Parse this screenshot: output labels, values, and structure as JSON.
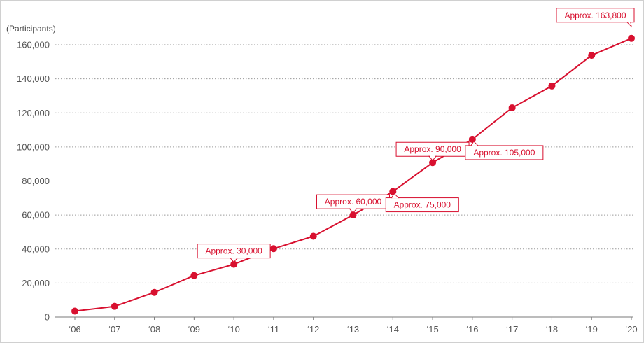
{
  "chart_data": {
    "type": "line",
    "title": "",
    "unit_label": "(Participants)",
    "xlabel": "",
    "ylabel": "",
    "categories": [
      "‘06",
      "‘07",
      "‘08",
      "‘09",
      "‘10",
      "‘11",
      "‘12",
      "‘13",
      "‘14",
      "‘15",
      "‘16",
      "‘17",
      "‘18",
      "‘19",
      "‘20"
    ],
    "series": [
      {
        "values": [
          3500,
          6300,
          14500,
          24400,
          31000,
          40200,
          47500,
          60000,
          73800,
          90800,
          104500,
          123000,
          135800,
          153800,
          163800
        ]
      }
    ],
    "ylim": [
      0,
      170000
    ],
    "yticks": [
      0,
      20000,
      40000,
      60000,
      80000,
      100000,
      120000,
      140000,
      160000
    ],
    "ytick_labels": [
      "0",
      "20,000",
      "40,000",
      "60,000",
      "80,000",
      "100,000",
      "120,000",
      "140,000",
      "160,000"
    ],
    "grid": true,
    "line_color": "#d8102f",
    "annotations": [
      {
        "index": 4,
        "text": "Approx. 30,000",
        "position": "above"
      },
      {
        "index": 7,
        "text": "Approx. 60,000",
        "position": "above"
      },
      {
        "index": 8,
        "text": "Approx. 75,000",
        "position": "below"
      },
      {
        "index": 9,
        "text": "Approx. 90,000",
        "position": "above"
      },
      {
        "index": 10,
        "text": "Approx. 105,000",
        "position": "below"
      },
      {
        "index": 14,
        "text": "Approx. 163,800",
        "position": "above-left"
      }
    ]
  }
}
